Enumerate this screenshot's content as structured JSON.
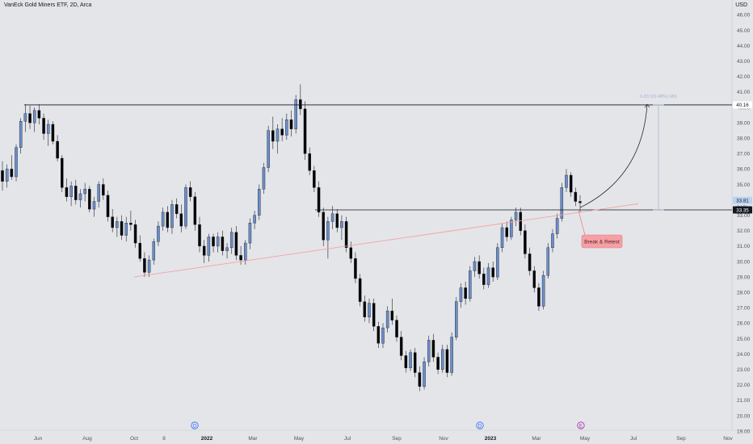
{
  "header": {
    "title": "VanEck Gold Miners ETF, 2D, Arca",
    "currency": "USD"
  },
  "chart_data": {
    "type": "candlestick",
    "y_axis": {
      "ticks": [
        "46.00",
        "45.00",
        "44.00",
        "43.00",
        "42.00",
        "41.00",
        "40.00",
        "39.00",
        "38.00",
        "37.00",
        "36.00",
        "35.00",
        "34.00",
        "33.00",
        "32.00",
        "31.00",
        "30.00",
        "29.00",
        "28.00",
        "27.00",
        "26.00",
        "25.00",
        "24.00",
        "23.00",
        "22.00",
        "21.00",
        "20.00",
        "19.00"
      ],
      "range": [
        19,
        46
      ]
    },
    "x_axis": {
      "ticks": [
        "Jun",
        "Aug",
        "Oct",
        "8",
        "2022",
        "Mar",
        "May",
        "Jul",
        "Sep",
        "Nov",
        "2023",
        "Mar",
        "May",
        "Jul",
        "Sep",
        "Nov"
      ],
      "bold": [
        "2022",
        "2023"
      ]
    },
    "levels": {
      "resistance": 40.16,
      "support": 33.35,
      "current": 33.81,
      "countdown": "3d 5h"
    },
    "labels": {
      "resistance": "40.16",
      "support": "33.35",
      "current": "33.81",
      "countdown": "3d 5h"
    },
    "projection_label": "6.83 (20.48%) 683",
    "annotation": "Break & Retest",
    "event_markers": [
      "D",
      "D",
      "E"
    ],
    "series_down_color": "#000000",
    "series_up_color": "#6a8ec9",
    "trendline_color": "#f2a3a7",
    "price_data": [
      {
        "date": "2021-04",
        "o": 35.9,
        "h": 36.5,
        "l": 34.6,
        "c": 35.2
      },
      {
        "date": "2021-04",
        "o": 35.2,
        "h": 36.3,
        "l": 34.8,
        "c": 36.0
      },
      {
        "date": "2021-04",
        "o": 36.0,
        "h": 36.9,
        "l": 35.3,
        "c": 35.5
      },
      {
        "date": "2021-05",
        "o": 35.5,
        "h": 37.6,
        "l": 35.2,
        "c": 37.4
      },
      {
        "date": "2021-05",
        "o": 37.4,
        "h": 39.3,
        "l": 37.0,
        "c": 39.1
      },
      {
        "date": "2021-05",
        "o": 39.1,
        "h": 40.2,
        "l": 38.4,
        "c": 39.6
      },
      {
        "date": "2021-05",
        "o": 39.6,
        "h": 40.1,
        "l": 38.6,
        "c": 39.0
      },
      {
        "date": "2021-06",
        "o": 39.0,
        "h": 40.0,
        "l": 38.4,
        "c": 39.8
      },
      {
        "date": "2021-06",
        "o": 39.8,
        "h": 40.2,
        "l": 38.9,
        "c": 39.3
      },
      {
        "date": "2021-06",
        "o": 39.3,
        "h": 39.6,
        "l": 37.9,
        "c": 38.3
      },
      {
        "date": "2021-06",
        "o": 38.3,
        "h": 39.2,
        "l": 37.5,
        "c": 38.9
      },
      {
        "date": "2021-06",
        "o": 38.9,
        "h": 39.1,
        "l": 37.6,
        "c": 37.8
      },
      {
        "date": "2021-06",
        "o": 37.8,
        "h": 38.2,
        "l": 36.5,
        "c": 36.7
      },
      {
        "date": "2021-07",
        "o": 36.7,
        "h": 36.9,
        "l": 34.5,
        "c": 34.8
      },
      {
        "date": "2021-07",
        "o": 34.8,
        "h": 35.4,
        "l": 33.9,
        "c": 34.2
      },
      {
        "date": "2021-07",
        "o": 34.2,
        "h": 35.2,
        "l": 33.6,
        "c": 34.9
      },
      {
        "date": "2021-07",
        "o": 34.9,
        "h": 35.3,
        "l": 33.7,
        "c": 34.0
      },
      {
        "date": "2021-07",
        "o": 34.0,
        "h": 34.7,
        "l": 33.5,
        "c": 34.4
      },
      {
        "date": "2021-08",
        "o": 34.4,
        "h": 35.1,
        "l": 33.9,
        "c": 34.7
      },
      {
        "date": "2021-08",
        "o": 34.7,
        "h": 34.9,
        "l": 33.2,
        "c": 33.4
      },
      {
        "date": "2021-08",
        "o": 33.4,
        "h": 34.2,
        "l": 32.9,
        "c": 33.9
      },
      {
        "date": "2021-08",
        "o": 33.9,
        "h": 35.2,
        "l": 33.5,
        "c": 35.0
      },
      {
        "date": "2021-08",
        "o": 35.0,
        "h": 35.4,
        "l": 34.0,
        "c": 34.3
      },
      {
        "date": "2021-09",
        "o": 34.3,
        "h": 34.6,
        "l": 32.6,
        "c": 32.9
      },
      {
        "date": "2021-09",
        "o": 32.9,
        "h": 33.4,
        "l": 31.9,
        "c": 32.2
      },
      {
        "date": "2021-09",
        "o": 32.2,
        "h": 32.9,
        "l": 31.6,
        "c": 32.6
      },
      {
        "date": "2021-09",
        "o": 32.6,
        "h": 33.0,
        "l": 31.4,
        "c": 31.7
      },
      {
        "date": "2021-09",
        "o": 31.7,
        "h": 32.9,
        "l": 31.3,
        "c": 32.5
      },
      {
        "date": "2021-09",
        "o": 32.5,
        "h": 33.3,
        "l": 32.0,
        "c": 32.4
      },
      {
        "date": "2021-10",
        "o": 32.4,
        "h": 32.7,
        "l": 30.9,
        "c": 31.2
      },
      {
        "date": "2021-10",
        "o": 31.2,
        "h": 31.7,
        "l": 30.0,
        "c": 30.2
      },
      {
        "date": "2021-10",
        "o": 30.2,
        "h": 30.6,
        "l": 29.0,
        "c": 29.3
      },
      {
        "date": "2021-10",
        "o": 29.3,
        "h": 30.4,
        "l": 29.0,
        "c": 30.1
      },
      {
        "date": "2021-10",
        "o": 30.1,
        "h": 31.5,
        "l": 29.8,
        "c": 31.3
      },
      {
        "date": "2021-10",
        "o": 31.3,
        "h": 32.6,
        "l": 31.0,
        "c": 32.3
      },
      {
        "date": "2021-11",
        "o": 32.3,
        "h": 33.5,
        "l": 32.0,
        "c": 33.2
      },
      {
        "date": "2021-11",
        "o": 33.2,
        "h": 33.6,
        "l": 31.9,
        "c": 32.2
      },
      {
        "date": "2021-11",
        "o": 32.2,
        "h": 34.0,
        "l": 31.8,
        "c": 33.7
      },
      {
        "date": "2021-11",
        "o": 33.7,
        "h": 34.1,
        "l": 32.8,
        "c": 33.1
      },
      {
        "date": "2021-11",
        "o": 33.1,
        "h": 33.7,
        "l": 31.9,
        "c": 32.3
      },
      {
        "date": "2021-11",
        "o": 32.3,
        "h": 35.0,
        "l": 32.1,
        "c": 34.8
      },
      {
        "date": "2021-12",
        "o": 34.8,
        "h": 35.2,
        "l": 33.9,
        "c": 34.2
      },
      {
        "date": "2021-12",
        "o": 34.2,
        "h": 34.5,
        "l": 32.0,
        "c": 32.4
      },
      {
        "date": "2021-12",
        "o": 32.4,
        "h": 32.9,
        "l": 30.6,
        "c": 31.0
      },
      {
        "date": "2021-12",
        "o": 31.0,
        "h": 31.4,
        "l": 29.9,
        "c": 30.4
      },
      {
        "date": "2021-12",
        "o": 30.4,
        "h": 31.8,
        "l": 30.0,
        "c": 31.6
      },
      {
        "date": "2021-12",
        "o": 31.6,
        "h": 31.8,
        "l": 30.6,
        "c": 31.0
      },
      {
        "date": "2022-01",
        "o": 31.0,
        "h": 31.9,
        "l": 30.6,
        "c": 31.6
      },
      {
        "date": "2022-01",
        "o": 31.6,
        "h": 32.0,
        "l": 30.4,
        "c": 30.7
      },
      {
        "date": "2022-01",
        "o": 30.7,
        "h": 31.2,
        "l": 30.2,
        "c": 30.9
      },
      {
        "date": "2022-01",
        "o": 30.9,
        "h": 32.2,
        "l": 30.5,
        "c": 31.9
      },
      {
        "date": "2022-01",
        "o": 31.9,
        "h": 32.3,
        "l": 30.1,
        "c": 30.4
      },
      {
        "date": "2022-01",
        "o": 30.4,
        "h": 31.0,
        "l": 29.8,
        "c": 30.1
      },
      {
        "date": "2022-02",
        "o": 30.1,
        "h": 31.4,
        "l": 29.8,
        "c": 31.2
      },
      {
        "date": "2022-02",
        "o": 31.2,
        "h": 32.8,
        "l": 30.8,
        "c": 32.5
      },
      {
        "date": "2022-02",
        "o": 32.5,
        "h": 33.3,
        "l": 32.1,
        "c": 33.0
      },
      {
        "date": "2022-02",
        "o": 33.0,
        "h": 35.0,
        "l": 32.7,
        "c": 34.7
      },
      {
        "date": "2022-02",
        "o": 34.7,
        "h": 36.4,
        "l": 34.4,
        "c": 36.1
      },
      {
        "date": "2022-03",
        "o": 36.1,
        "h": 38.8,
        "l": 35.8,
        "c": 38.5
      },
      {
        "date": "2022-03",
        "o": 38.5,
        "h": 39.4,
        "l": 37.3,
        "c": 37.8
      },
      {
        "date": "2022-03",
        "o": 37.8,
        "h": 38.9,
        "l": 37.0,
        "c": 38.6
      },
      {
        "date": "2022-03",
        "o": 38.6,
        "h": 39.3,
        "l": 37.8,
        "c": 38.2
      },
      {
        "date": "2022-03",
        "o": 38.2,
        "h": 39.6,
        "l": 37.9,
        "c": 39.2
      },
      {
        "date": "2022-04",
        "o": 39.2,
        "h": 39.8,
        "l": 38.1,
        "c": 38.6
      },
      {
        "date": "2022-04",
        "o": 38.6,
        "h": 40.8,
        "l": 38.3,
        "c": 40.5
      },
      {
        "date": "2022-04",
        "o": 40.5,
        "h": 41.5,
        "l": 39.5,
        "c": 39.9
      },
      {
        "date": "2022-04",
        "o": 39.9,
        "h": 40.4,
        "l": 36.6,
        "c": 37.0
      },
      {
        "date": "2022-04",
        "o": 37.0,
        "h": 37.4,
        "l": 35.6,
        "c": 35.9
      },
      {
        "date": "2022-05",
        "o": 35.9,
        "h": 36.2,
        "l": 34.5,
        "c": 34.8
      },
      {
        "date": "2022-05",
        "o": 34.8,
        "h": 35.2,
        "l": 32.9,
        "c": 33.2
      },
      {
        "date": "2022-05",
        "o": 33.2,
        "h": 33.5,
        "l": 31.0,
        "c": 31.4
      },
      {
        "date": "2022-05",
        "o": 31.4,
        "h": 32.9,
        "l": 30.2,
        "c": 32.6
      },
      {
        "date": "2022-05",
        "o": 32.6,
        "h": 33.6,
        "l": 32.1,
        "c": 33.1
      },
      {
        "date": "2022-06",
        "o": 33.1,
        "h": 33.4,
        "l": 31.9,
        "c": 32.2
      },
      {
        "date": "2022-06",
        "o": 32.2,
        "h": 33.0,
        "l": 31.4,
        "c": 32.6
      },
      {
        "date": "2022-06",
        "o": 32.6,
        "h": 32.9,
        "l": 30.6,
        "c": 30.9
      },
      {
        "date": "2022-06",
        "o": 30.9,
        "h": 31.3,
        "l": 29.9,
        "c": 30.2
      },
      {
        "date": "2022-06",
        "o": 30.2,
        "h": 30.6,
        "l": 28.6,
        "c": 28.9
      },
      {
        "date": "2022-07",
        "o": 28.9,
        "h": 29.2,
        "l": 27.1,
        "c": 27.4
      },
      {
        "date": "2022-07",
        "o": 27.4,
        "h": 27.8,
        "l": 26.1,
        "c": 26.4
      },
      {
        "date": "2022-07",
        "o": 26.4,
        "h": 27.6,
        "l": 26.0,
        "c": 27.3
      },
      {
        "date": "2022-07",
        "o": 27.3,
        "h": 27.6,
        "l": 25.5,
        "c": 25.8
      },
      {
        "date": "2022-07",
        "o": 25.8,
        "h": 26.1,
        "l": 24.4,
        "c": 24.7
      },
      {
        "date": "2022-08",
        "o": 24.7,
        "h": 26.0,
        "l": 24.4,
        "c": 25.7
      },
      {
        "date": "2022-08",
        "o": 25.7,
        "h": 27.1,
        "l": 25.4,
        "c": 26.8
      },
      {
        "date": "2022-08",
        "o": 26.8,
        "h": 27.6,
        "l": 25.9,
        "c": 26.2
      },
      {
        "date": "2022-08",
        "o": 26.2,
        "h": 26.5,
        "l": 24.8,
        "c": 25.1
      },
      {
        "date": "2022-08",
        "o": 25.1,
        "h": 25.5,
        "l": 23.6,
        "c": 23.9
      },
      {
        "date": "2022-09",
        "o": 23.9,
        "h": 24.2,
        "l": 22.8,
        "c": 23.1
      },
      {
        "date": "2022-09",
        "o": 23.1,
        "h": 24.3,
        "l": 22.9,
        "c": 24.1
      },
      {
        "date": "2022-09",
        "o": 24.1,
        "h": 24.4,
        "l": 22.5,
        "c": 22.8
      },
      {
        "date": "2022-09",
        "o": 22.8,
        "h": 23.2,
        "l": 21.6,
        "c": 21.9
      },
      {
        "date": "2022-09",
        "o": 21.9,
        "h": 23.8,
        "l": 21.7,
        "c": 23.5
      },
      {
        "date": "2022-10",
        "o": 23.5,
        "h": 25.2,
        "l": 23.2,
        "c": 24.9
      },
      {
        "date": "2022-10",
        "o": 24.9,
        "h": 25.3,
        "l": 23.5,
        "c": 23.8
      },
      {
        "date": "2022-10",
        "o": 23.8,
        "h": 24.1,
        "l": 22.7,
        "c": 23.0
      },
      {
        "date": "2022-10",
        "o": 23.0,
        "h": 24.6,
        "l": 22.8,
        "c": 24.3
      },
      {
        "date": "2022-10",
        "o": 24.3,
        "h": 24.6,
        "l": 22.5,
        "c": 22.8
      },
      {
        "date": "2022-11",
        "o": 22.8,
        "h": 25.4,
        "l": 22.6,
        "c": 25.1
      },
      {
        "date": "2022-11",
        "o": 25.1,
        "h": 27.7,
        "l": 24.9,
        "c": 27.4
      },
      {
        "date": "2022-11",
        "o": 27.4,
        "h": 28.6,
        "l": 27.0,
        "c": 28.3
      },
      {
        "date": "2022-11",
        "o": 28.3,
        "h": 28.7,
        "l": 27.2,
        "c": 27.6
      },
      {
        "date": "2022-11",
        "o": 27.6,
        "h": 29.7,
        "l": 27.4,
        "c": 29.4
      },
      {
        "date": "2022-12",
        "o": 29.4,
        "h": 30.3,
        "l": 29.0,
        "c": 30.0
      },
      {
        "date": "2022-12",
        "o": 30.0,
        "h": 30.4,
        "l": 28.9,
        "c": 29.2
      },
      {
        "date": "2022-12",
        "o": 29.2,
        "h": 29.6,
        "l": 28.2,
        "c": 28.5
      },
      {
        "date": "2022-12",
        "o": 28.5,
        "h": 29.9,
        "l": 28.3,
        "c": 29.6
      },
      {
        "date": "2022-12",
        "o": 29.6,
        "h": 30.0,
        "l": 28.7,
        "c": 29.0
      },
      {
        "date": "2023-01",
        "o": 29.0,
        "h": 31.2,
        "l": 28.8,
        "c": 30.9
      },
      {
        "date": "2023-01",
        "o": 30.9,
        "h": 32.5,
        "l": 30.6,
        "c": 32.2
      },
      {
        "date": "2023-01",
        "o": 32.2,
        "h": 32.6,
        "l": 31.3,
        "c": 31.6
      },
      {
        "date": "2023-01",
        "o": 31.6,
        "h": 32.9,
        "l": 31.4,
        "c": 32.7
      },
      {
        "date": "2023-01",
        "o": 32.7,
        "h": 33.5,
        "l": 32.3,
        "c": 33.2
      },
      {
        "date": "2023-02",
        "o": 33.2,
        "h": 33.5,
        "l": 31.7,
        "c": 32.0
      },
      {
        "date": "2023-02",
        "o": 32.0,
        "h": 32.4,
        "l": 30.2,
        "c": 30.5
      },
      {
        "date": "2023-02",
        "o": 30.5,
        "h": 30.9,
        "l": 29.1,
        "c": 29.4
      },
      {
        "date": "2023-02",
        "o": 29.4,
        "h": 29.7,
        "l": 28.0,
        "c": 28.3
      },
      {
        "date": "2023-03",
        "o": 28.3,
        "h": 28.6,
        "l": 26.8,
        "c": 27.1
      },
      {
        "date": "2023-03",
        "o": 27.1,
        "h": 29.4,
        "l": 26.9,
        "c": 29.1
      },
      {
        "date": "2023-03",
        "o": 29.1,
        "h": 31.2,
        "l": 28.9,
        "c": 30.9
      },
      {
        "date": "2023-03",
        "o": 30.9,
        "h": 32.1,
        "l": 30.6,
        "c": 31.8
      },
      {
        "date": "2023-03",
        "o": 31.8,
        "h": 33.1,
        "l": 31.5,
        "c": 32.8
      },
      {
        "date": "2023-04",
        "o": 32.8,
        "h": 35.1,
        "l": 32.6,
        "c": 34.8
      },
      {
        "date": "2023-04",
        "o": 34.8,
        "h": 36.0,
        "l": 34.5,
        "c": 35.6
      },
      {
        "date": "2023-04",
        "o": 35.6,
        "h": 35.8,
        "l": 34.2,
        "c": 34.5
      },
      {
        "date": "2023-04",
        "o": 34.5,
        "h": 34.8,
        "l": 33.6,
        "c": 33.9
      },
      {
        "date": "2023-04",
        "o": 33.9,
        "h": 34.3,
        "l": 33.2,
        "c": 33.81
      }
    ]
  }
}
